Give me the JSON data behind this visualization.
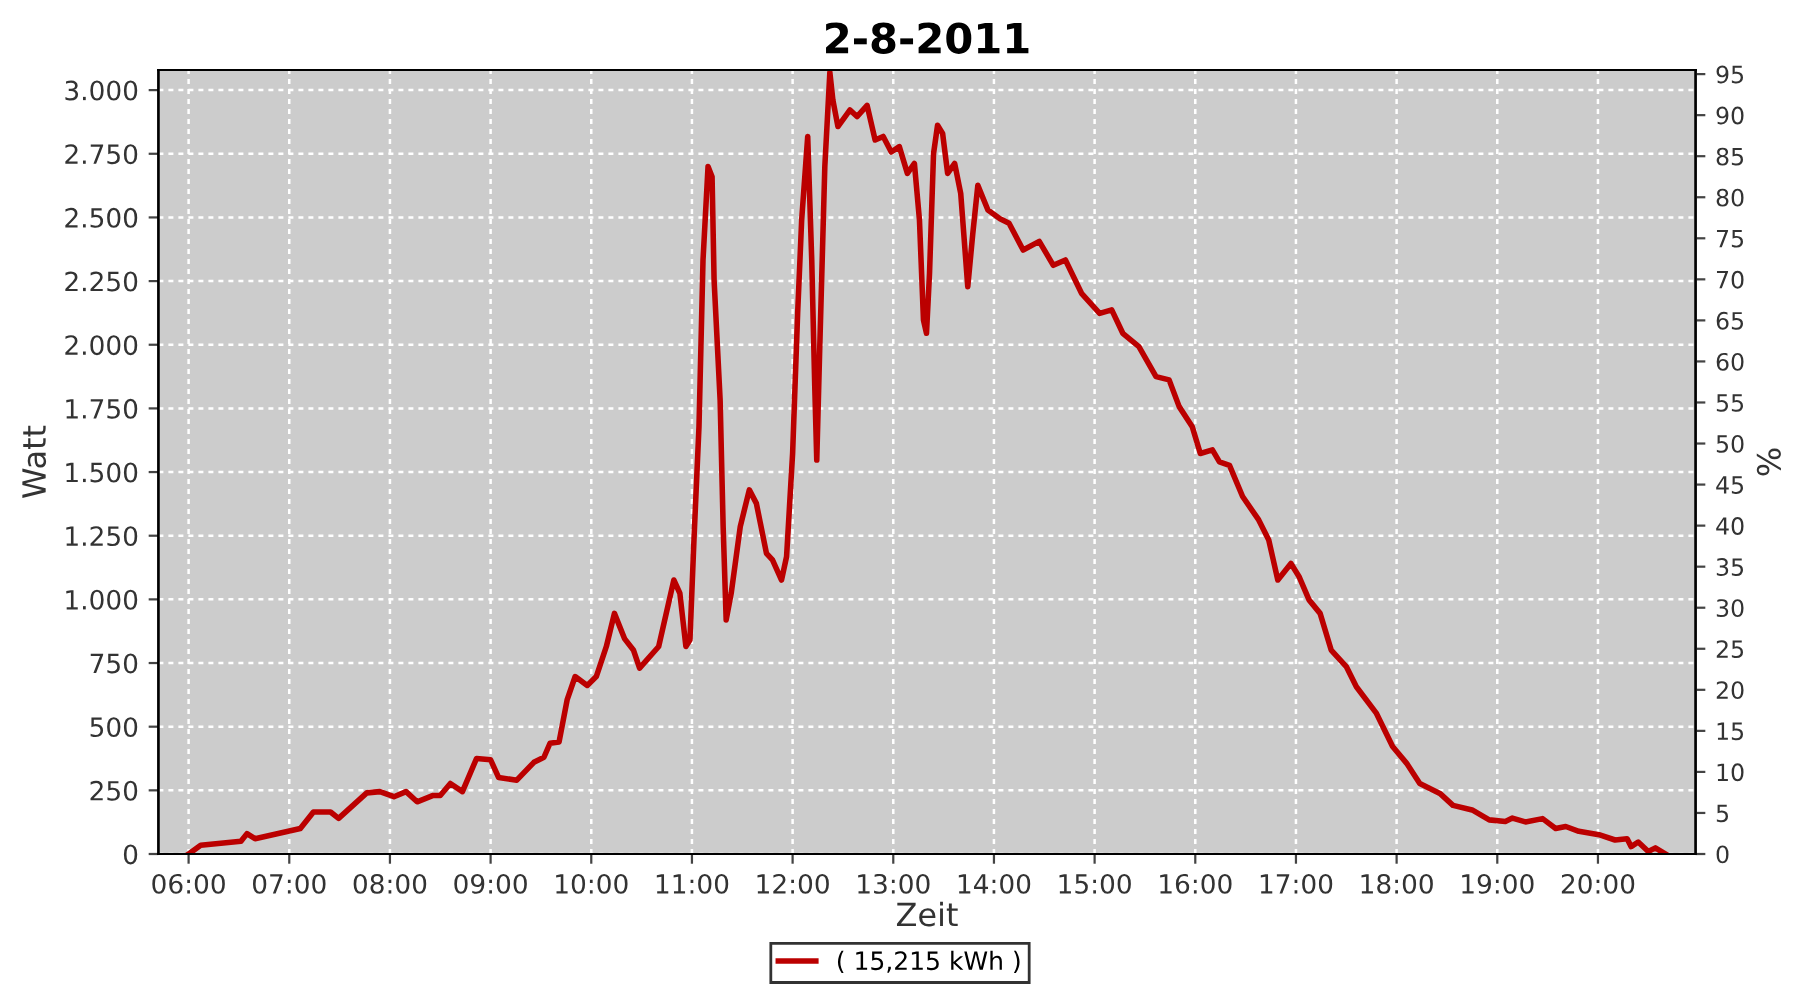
{
  "chart_data": {
    "type": "line",
    "title": "2-8-2011",
    "xlabel": "Zeit",
    "ylabel": "Watt",
    "y2label": "%",
    "xlim": [
      5.7,
      20.97
    ],
    "ylim": [
      0,
      3079
    ],
    "y2lim": [
      0,
      95.5
    ],
    "xticks": [
      {
        "value": 6,
        "label": "06:00"
      },
      {
        "value": 7,
        "label": "07:00"
      },
      {
        "value": 8,
        "label": "08:00"
      },
      {
        "value": 9,
        "label": "09:00"
      },
      {
        "value": 10,
        "label": "10:00"
      },
      {
        "value": 11,
        "label": "11:00"
      },
      {
        "value": 12,
        "label": "12:00"
      },
      {
        "value": 13,
        "label": "13:00"
      },
      {
        "value": 14,
        "label": "14:00"
      },
      {
        "value": 15,
        "label": "15:00"
      },
      {
        "value": 16,
        "label": "16:00"
      },
      {
        "value": 17,
        "label": "17:00"
      },
      {
        "value": 18,
        "label": "18:00"
      },
      {
        "value": 19,
        "label": "19:00"
      },
      {
        "value": 20,
        "label": "20:00"
      }
    ],
    "yticks": [
      0,
      250,
      500,
      750,
      {
        "value": 1000,
        "label": "1.000"
      },
      {
        "value": 1250,
        "label": "1.250"
      },
      {
        "value": 1500,
        "label": "1.500"
      },
      {
        "value": 1750,
        "label": "1.750"
      },
      {
        "value": 2000,
        "label": "2.000"
      },
      {
        "value": 2250,
        "label": "2.250"
      },
      {
        "value": 2500,
        "label": "2.500"
      },
      {
        "value": 2750,
        "label": "2.750"
      },
      {
        "value": 3000,
        "label": "3.000"
      }
    ],
    "y2ticks": [
      0,
      5,
      10,
      15,
      20,
      25,
      30,
      35,
      40,
      45,
      50,
      55,
      60,
      65,
      70,
      75,
      80,
      85,
      90,
      95
    ],
    "grid": true,
    "legend": "bottom",
    "line_style": "solid",
    "marker": "none",
    "series": [
      {
        "name": "( 15,215 kWh )",
        "color": "#bb0000",
        "x": [
          6.0,
          6.12,
          6.52,
          6.58,
          6.66,
          7.11,
          7.24,
          7.41,
          7.49,
          7.77,
          7.9,
          8.04,
          8.16,
          8.27,
          8.43,
          8.5,
          8.6,
          8.72,
          8.86,
          9.0,
          9.08,
          9.26,
          9.43,
          9.53,
          9.59,
          9.68,
          9.76,
          9.84,
          9.96,
          10.05,
          10.15,
          10.23,
          10.33,
          10.42,
          10.48,
          10.67,
          10.82,
          10.88,
          10.94,
          10.98,
          11.02,
          11.07,
          11.11,
          11.16,
          11.2,
          11.22,
          11.28,
          11.31,
          11.34,
          11.39,
          11.48,
          11.57,
          11.64,
          11.74,
          11.8,
          11.89,
          11.94,
          12.0,
          12.05,
          12.09,
          12.15,
          12.19,
          12.22,
          12.24,
          12.27,
          12.32,
          12.37,
          12.4,
          12.45,
          12.57,
          12.64,
          12.74,
          12.82,
          12.9,
          12.98,
          13.06,
          13.14,
          13.21,
          13.26,
          13.3,
          13.33,
          13.36,
          13.4,
          13.44,
          13.49,
          13.54,
          13.61,
          13.67,
          13.74,
          13.79,
          13.84,
          13.94,
          14.06,
          14.15,
          14.29,
          14.45,
          14.59,
          14.71,
          14.87,
          15.05,
          15.17,
          15.28,
          15.44,
          15.61,
          15.74,
          15.84,
          15.97,
          16.05,
          16.17,
          16.24,
          16.34,
          16.47,
          16.63,
          16.73,
          16.82,
          16.95,
          17.03,
          17.13,
          17.24,
          17.35,
          17.5,
          17.6,
          17.8,
          17.96,
          18.1,
          18.23,
          18.43,
          18.56,
          18.75,
          18.92,
          19.08,
          19.15,
          19.28,
          19.45,
          19.58,
          19.68,
          19.81,
          20.01,
          20.17,
          20.29,
          20.33,
          20.4,
          20.5,
          20.57,
          20.67
        ],
        "values": [
          0,
          34,
          50,
          80,
          60,
          100,
          165,
          165,
          140,
          240,
          245,
          225,
          245,
          205,
          230,
          230,
          277,
          245,
          375,
          370,
          300,
          290,
          360,
          380,
          435,
          440,
          605,
          697,
          662,
          697,
          815,
          945,
          846,
          800,
          730,
          815,
          1076,
          1024,
          815,
          840,
          1233,
          1678,
          2333,
          2700,
          2660,
          2254,
          1783,
          1286,
          919,
          1024,
          1286,
          1430,
          1377,
          1181,
          1155,
          1076,
          1168,
          1573,
          2123,
          2490,
          2818,
          2333,
          1836,
          1547,
          1993,
          2700,
          3070,
          2961,
          2857,
          2922,
          2896,
          2940,
          2804,
          2818,
          2757,
          2778,
          2673,
          2712,
          2490,
          2097,
          2045,
          2280,
          2751,
          2862,
          2830,
          2673,
          2712,
          2594,
          2228,
          2437,
          2626,
          2529,
          2495,
          2477,
          2372,
          2406,
          2312,
          2333,
          2202,
          2123,
          2137,
          2045,
          1993,
          1875,
          1862,
          1757,
          1678,
          1573,
          1587,
          1540,
          1526,
          1404,
          1312,
          1233,
          1076,
          1141,
          1090,
          998,
          945,
          801,
          736,
          657,
          552,
          422,
          356,
          277,
          238,
          191,
          173,
          134,
          128,
          141,
          126,
          139,
          100,
          108,
          89,
          76,
          55,
          60,
          29,
          47,
          10,
          24,
          0
        ]
      }
    ]
  }
}
